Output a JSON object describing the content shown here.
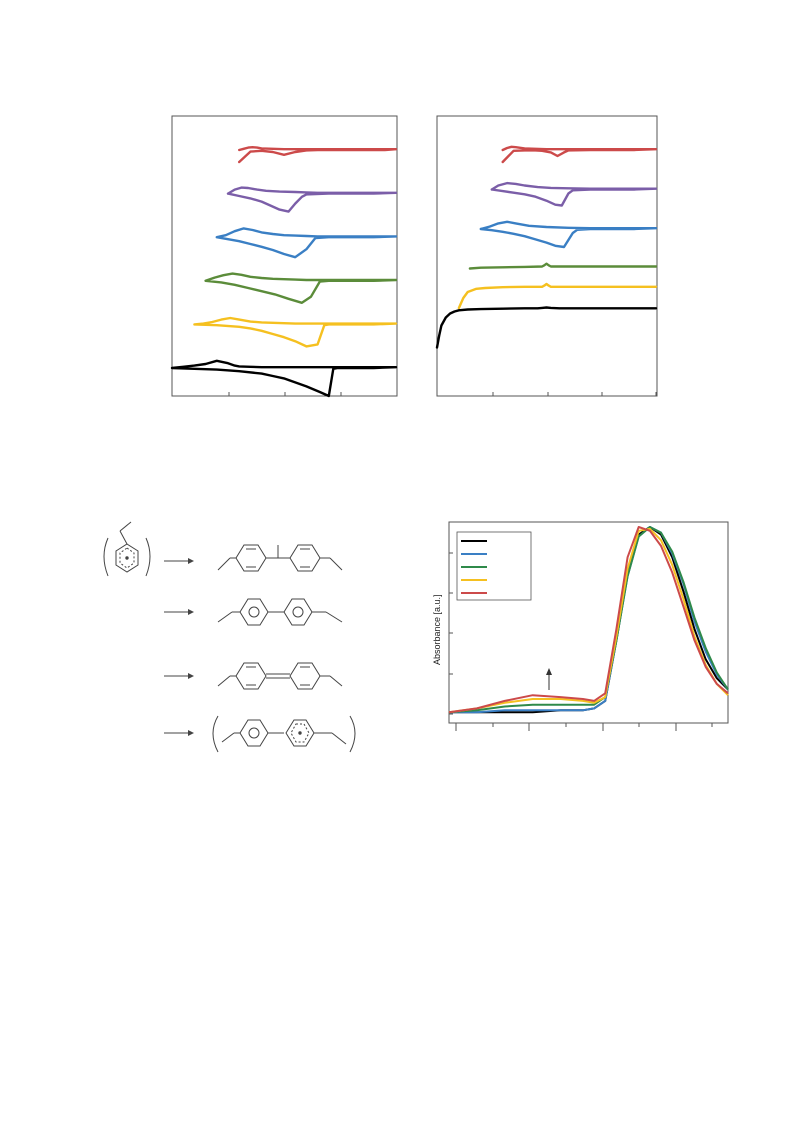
{
  "colors": {
    "red": "#cc4a4a",
    "purple": "#7b5ea8",
    "blue": "#3a7fc4",
    "green": "#5b8c3a",
    "yellow": "#f5c020",
    "black": "#000000",
    "uv_green": "#2f8a4a"
  },
  "chart_data": [
    {
      "id": "cv-left",
      "type": "line",
      "title": "",
      "xlabel": "",
      "ylabel": "",
      "grid": false,
      "legend": "none",
      "series": [
        {
          "color": "red",
          "offset": 0,
          "x": [
            0.3,
            0.32,
            0.34,
            0.36,
            0.38,
            0.4,
            0.45,
            0.5,
            0.55,
            0.6,
            0.65,
            0.7,
            0.75,
            0.8,
            0.85,
            0.9,
            0.95,
            1.0,
            0.95,
            0.9,
            0.85,
            0.8,
            0.75,
            0.7,
            0.65,
            0.6,
            0.55,
            0.5,
            0.45,
            0.4,
            0.35,
            0.3
          ],
          "y": [
            0.0,
            0.03,
            0.06,
            0.07,
            0.06,
            0.04,
            0.03,
            0.02,
            0.02,
            0.02,
            0.02,
            0.02,
            0.02,
            0.02,
            0.02,
            0.02,
            0.02,
            0.02,
            0.0,
            0.0,
            0.0,
            0.0,
            0.0,
            0.0,
            0.0,
            -0.01,
            -0.05,
            -0.12,
            -0.05,
            -0.02,
            -0.04,
            -0.3
          ]
        },
        {
          "color": "purple",
          "offset": 1,
          "x": [
            0.25,
            0.28,
            0.31,
            0.34,
            0.38,
            0.42,
            0.48,
            0.55,
            0.6,
            0.65,
            0.7,
            0.8,
            0.9,
            1.0,
            0.9,
            0.8,
            0.7,
            0.6,
            0.58,
            0.55,
            0.52,
            0.48,
            0.44,
            0.4,
            0.35,
            0.3,
            0.25
          ],
          "y": [
            0.0,
            0.1,
            0.15,
            0.14,
            0.1,
            0.07,
            0.05,
            0.04,
            0.03,
            0.02,
            0.02,
            0.02,
            0.02,
            0.02,
            0.0,
            0.0,
            0.0,
            -0.02,
            -0.08,
            -0.25,
            -0.45,
            -0.4,
            -0.3,
            -0.2,
            -0.12,
            -0.06,
            0.0
          ]
        },
        {
          "color": "blue",
          "offset": 2,
          "x": [
            0.2,
            0.24,
            0.28,
            0.32,
            0.36,
            0.4,
            0.45,
            0.5,
            0.55,
            0.6,
            0.65,
            0.7,
            0.8,
            0.9,
            1.0,
            0.9,
            0.8,
            0.7,
            0.64,
            0.6,
            0.55,
            0.5,
            0.45,
            0.4,
            0.35,
            0.3,
            0.25,
            0.2
          ],
          "y": [
            0.0,
            0.05,
            0.15,
            0.22,
            0.18,
            0.12,
            0.08,
            0.05,
            0.04,
            0.03,
            0.02,
            0.02,
            0.02,
            0.02,
            0.02,
            0.0,
            0.0,
            0.0,
            -0.02,
            -0.3,
            -0.5,
            -0.42,
            -0.32,
            -0.24,
            -0.17,
            -0.1,
            -0.05,
            0.0
          ]
        },
        {
          "color": "green",
          "offset": 3,
          "x": [
            0.15,
            0.19,
            0.23,
            0.27,
            0.31,
            0.35,
            0.4,
            0.45,
            0.5,
            0.55,
            0.6,
            0.65,
            0.7,
            0.8,
            0.9,
            1.0,
            0.9,
            0.8,
            0.7,
            0.66,
            0.62,
            0.58,
            0.52,
            0.46,
            0.4,
            0.34,
            0.28,
            0.22,
            0.15
          ],
          "y": [
            0.0,
            0.08,
            0.14,
            0.18,
            0.15,
            0.1,
            0.07,
            0.05,
            0.04,
            0.03,
            0.02,
            0.02,
            0.02,
            0.02,
            0.02,
            0.02,
            0.0,
            0.0,
            0.0,
            -0.02,
            -0.4,
            -0.55,
            -0.45,
            -0.34,
            -0.26,
            -0.18,
            -0.1,
            -0.04,
            0.0
          ]
        },
        {
          "color": "yellow",
          "offset": 4,
          "x": [
            0.1,
            0.14,
            0.18,
            0.22,
            0.26,
            0.3,
            0.35,
            0.4,
            0.45,
            0.5,
            0.55,
            0.6,
            0.65,
            0.7,
            0.8,
            0.9,
            1.0,
            0.9,
            0.8,
            0.7,
            0.68,
            0.65,
            0.6,
            0.55,
            0.5,
            0.45,
            0.4,
            0.35,
            0.3,
            0.2,
            0.1
          ],
          "y": [
            0.0,
            0.02,
            0.06,
            0.12,
            0.16,
            0.12,
            0.07,
            0.05,
            0.04,
            0.03,
            0.02,
            0.02,
            0.02,
            0.02,
            0.02,
            0.02,
            0.02,
            0.0,
            0.0,
            0.0,
            -0.02,
            -0.5,
            -0.55,
            -0.42,
            -0.32,
            -0.24,
            -0.16,
            -0.1,
            -0.06,
            -0.02,
            0.0
          ]
        },
        {
          "color": "black",
          "offset": 5,
          "x": [
            0.0,
            0.05,
            0.1,
            0.15,
            0.2,
            0.25,
            0.28,
            0.3,
            0.35,
            0.4,
            0.45,
            0.5,
            0.6,
            0.7,
            0.8,
            0.9,
            1.0,
            0.9,
            0.8,
            0.74,
            0.72,
            0.7,
            0.66,
            0.6,
            0.55,
            0.5,
            0.45,
            0.4,
            0.3,
            0.2,
            0.1,
            0.0
          ],
          "y": [
            0.0,
            0.03,
            0.06,
            0.1,
            0.18,
            0.12,
            0.06,
            0.04,
            0.03,
            0.02,
            0.02,
            0.02,
            0.02,
            0.02,
            0.02,
            0.02,
            0.02,
            0.0,
            0.0,
            0.0,
            -0.02,
            -0.7,
            -0.6,
            -0.46,
            -0.36,
            -0.26,
            -0.2,
            -0.14,
            -0.08,
            -0.04,
            -0.02,
            0.0
          ]
        }
      ]
    },
    {
      "id": "cv-right",
      "type": "line",
      "title": "",
      "xlabel": "",
      "ylabel": "",
      "grid": false,
      "legend": "none",
      "series": [
        {
          "color": "red",
          "offset": 0,
          "x": [
            0.3,
            0.32,
            0.34,
            0.36,
            0.4,
            0.45,
            0.5,
            0.6,
            0.7,
            0.8,
            0.9,
            1.0,
            0.9,
            0.8,
            0.7,
            0.6,
            0.58,
            0.55,
            0.52,
            0.48,
            0.45,
            0.4,
            0.35,
            0.3
          ],
          "y": [
            0.0,
            0.05,
            0.08,
            0.07,
            0.04,
            0.03,
            0.02,
            0.02,
            0.02,
            0.02,
            0.02,
            0.02,
            0.0,
            0.0,
            0.0,
            -0.01,
            -0.06,
            -0.15,
            -0.06,
            -0.02,
            -0.01,
            -0.01,
            -0.02,
            -0.3
          ]
        },
        {
          "color": "purple",
          "offset": 1,
          "x": [
            0.25,
            0.28,
            0.32,
            0.36,
            0.4,
            0.46,
            0.52,
            0.6,
            0.7,
            0.8,
            0.9,
            1.0,
            0.9,
            0.8,
            0.7,
            0.62,
            0.6,
            0.57,
            0.54,
            0.5,
            0.45,
            0.4,
            0.35,
            0.3,
            0.25
          ],
          "y": [
            0.0,
            0.1,
            0.16,
            0.14,
            0.1,
            0.06,
            0.04,
            0.03,
            0.02,
            0.02,
            0.02,
            0.02,
            0.0,
            0.0,
            0.0,
            -0.02,
            -0.1,
            -0.4,
            -0.38,
            -0.28,
            -0.18,
            -0.12,
            -0.08,
            -0.04,
            0.0
          ]
        },
        {
          "color": "blue",
          "offset": 2,
          "x": [
            0.2,
            0.24,
            0.28,
            0.32,
            0.36,
            0.42,
            0.5,
            0.6,
            0.7,
            0.8,
            0.9,
            1.0,
            0.9,
            0.8,
            0.7,
            0.64,
            0.62,
            0.58,
            0.54,
            0.5,
            0.45,
            0.4,
            0.35,
            0.3,
            0.25,
            0.2
          ],
          "y": [
            0.0,
            0.06,
            0.14,
            0.18,
            0.14,
            0.08,
            0.05,
            0.03,
            0.02,
            0.02,
            0.02,
            0.02,
            0.0,
            0.0,
            0.0,
            -0.02,
            -0.1,
            -0.45,
            -0.42,
            -0.34,
            -0.26,
            -0.18,
            -0.12,
            -0.07,
            -0.03,
            0.0
          ]
        },
        {
          "color": "green",
          "offset": 3,
          "x": [
            0.15,
            0.2,
            0.3,
            0.4,
            0.48,
            0.49,
            0.5,
            0.51,
            0.52,
            0.6,
            0.7,
            0.8,
            0.9,
            1.0
          ],
          "y": [
            0.0,
            0.02,
            0.03,
            0.04,
            0.05,
            0.08,
            0.12,
            0.08,
            0.05,
            0.05,
            0.05,
            0.05,
            0.05,
            0.05
          ]
        },
        {
          "color": "yellow",
          "offset": 4,
          "x": [
            0.1,
            0.12,
            0.14,
            0.18,
            0.22,
            0.3,
            0.4,
            0.48,
            0.49,
            0.5,
            0.51,
            0.52,
            0.6,
            0.7,
            0.8,
            0.9,
            1.0
          ],
          "y": [
            0.0,
            0.25,
            0.4,
            0.48,
            0.5,
            0.52,
            0.53,
            0.53,
            0.56,
            0.6,
            0.56,
            0.53,
            0.53,
            0.53,
            0.53,
            0.53,
            0.53
          ]
        },
        {
          "color": "black",
          "offset": 5,
          "x": [
            0.0,
            0.01,
            0.02,
            0.04,
            0.06,
            0.08,
            0.1,
            0.14,
            0.2,
            0.3,
            0.4,
            0.46,
            0.48,
            0.5,
            0.52,
            0.56,
            0.6,
            0.7,
            0.8,
            0.9,
            1.0
          ],
          "y": [
            0.0,
            0.3,
            0.55,
            0.75,
            0.85,
            0.9,
            0.93,
            0.95,
            0.96,
            0.97,
            0.98,
            0.98,
            0.99,
            1.0,
            0.99,
            0.98,
            0.98,
            0.98,
            0.98,
            0.98,
            0.98
          ]
        }
      ]
    },
    {
      "id": "uv-vis",
      "type": "line",
      "title": "",
      "xlabel": "",
      "ylabel": "Absorbance [a.u.]",
      "grid": false,
      "legend": "top-left",
      "xlim": [
        0,
        1
      ],
      "ylim": [
        0,
        1
      ],
      "series": [
        {
          "color": "black",
          "x": [
            0.0,
            0.1,
            0.2,
            0.3,
            0.4,
            0.48,
            0.52,
            0.56,
            0.6,
            0.64,
            0.68,
            0.72,
            0.76,
            0.8,
            0.84,
            0.88,
            0.92,
            0.96,
            1.0
          ],
          "y": [
            0.02,
            0.02,
            0.02,
            0.02,
            0.03,
            0.03,
            0.04,
            0.08,
            0.4,
            0.75,
            0.96,
            1.0,
            0.96,
            0.84,
            0.66,
            0.46,
            0.3,
            0.2,
            0.14
          ]
        },
        {
          "color": "blue",
          "x": [
            0.0,
            0.1,
            0.2,
            0.3,
            0.4,
            0.48,
            0.52,
            0.56,
            0.6,
            0.64,
            0.68,
            0.72,
            0.76,
            0.8,
            0.84,
            0.88,
            0.92,
            0.96,
            1.0
          ],
          "y": [
            0.02,
            0.02,
            0.03,
            0.03,
            0.03,
            0.03,
            0.04,
            0.08,
            0.4,
            0.74,
            0.95,
            1.0,
            0.97,
            0.86,
            0.7,
            0.5,
            0.34,
            0.22,
            0.14
          ]
        },
        {
          "color": "uv_green",
          "x": [
            0.0,
            0.1,
            0.2,
            0.3,
            0.4,
            0.48,
            0.52,
            0.56,
            0.6,
            0.64,
            0.68,
            0.72,
            0.76,
            0.8,
            0.84,
            0.88,
            0.92,
            0.96,
            1.0
          ],
          "y": [
            0.02,
            0.03,
            0.05,
            0.06,
            0.06,
            0.06,
            0.06,
            0.1,
            0.4,
            0.74,
            0.95,
            1.0,
            0.97,
            0.87,
            0.71,
            0.52,
            0.36,
            0.23,
            0.14
          ]
        },
        {
          "color": "yellow",
          "x": [
            0.0,
            0.1,
            0.2,
            0.3,
            0.4,
            0.48,
            0.52,
            0.56,
            0.6,
            0.64,
            0.68,
            0.72,
            0.76,
            0.8,
            0.84,
            0.88,
            0.92,
            0.96,
            1.0
          ],
          "y": [
            0.02,
            0.04,
            0.07,
            0.09,
            0.09,
            0.08,
            0.07,
            0.1,
            0.42,
            0.78,
            0.98,
            0.99,
            0.93,
            0.8,
            0.62,
            0.42,
            0.27,
            0.17,
            0.11
          ]
        },
        {
          "color": "red",
          "x": [
            0.0,
            0.1,
            0.2,
            0.3,
            0.4,
            0.48,
            0.52,
            0.56,
            0.6,
            0.64,
            0.68,
            0.72,
            0.76,
            0.8,
            0.84,
            0.88,
            0.92,
            0.96,
            1.0
          ],
          "y": [
            0.02,
            0.04,
            0.08,
            0.11,
            0.1,
            0.09,
            0.08,
            0.12,
            0.46,
            0.84,
            1.0,
            0.98,
            0.9,
            0.76,
            0.58,
            0.4,
            0.26,
            0.17,
            0.12
          ]
        }
      ]
    }
  ]
}
